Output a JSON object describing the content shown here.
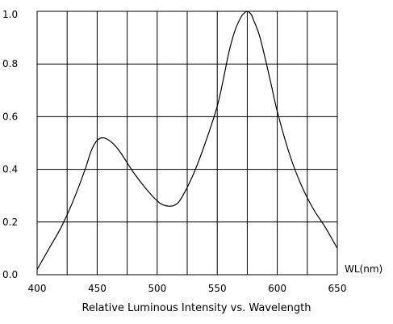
{
  "chart_data": {
    "type": "line",
    "title": "Relative Luminous Intensity vs. Wavelength",
    "xlabel": "WL(nm)",
    "ylabel": "",
    "xlim": [
      400,
      650
    ],
    "ylim": [
      0,
      1.0
    ],
    "grid": true,
    "x_ticks": [
      {
        "value": 400,
        "label": "400"
      },
      {
        "value": 450,
        "label": "450"
      },
      {
        "value": 500,
        "label": "500"
      },
      {
        "value": 550,
        "label": "550"
      },
      {
        "value": 600,
        "label": "600"
      },
      {
        "value": 650,
        "label": "650"
      }
    ],
    "x_gridlines": [
      400,
      425,
      450,
      475,
      500,
      525,
      550,
      575,
      600,
      625,
      650
    ],
    "y_ticks": [
      {
        "value": 0.0,
        "label": "0.0"
      },
      {
        "value": 0.2,
        "label": "0.2"
      },
      {
        "value": 0.4,
        "label": "0.4"
      },
      {
        "value": 0.6,
        "label": "0.6"
      },
      {
        "value": 0.8,
        "label": "0.8"
      },
      {
        "value": 1.0,
        "label": "1.0"
      }
    ],
    "series": [
      {
        "color": "#000000",
        "x": [
          400,
          410,
          420,
          430,
          440,
          445,
          450,
          455,
          460,
          465,
          470,
          480,
          490,
          500,
          505,
          510,
          515,
          520,
          530,
          540,
          550,
          555,
          560,
          565,
          570,
          573,
          575,
          578,
          580,
          585,
          590,
          595,
          600,
          610,
          620,
          630,
          640,
          650
        ],
        "y": [
          0.02,
          0.1,
          0.18,
          0.28,
          0.4,
          0.47,
          0.51,
          0.52,
          0.51,
          0.49,
          0.46,
          0.39,
          0.33,
          0.28,
          0.265,
          0.26,
          0.265,
          0.29,
          0.38,
          0.5,
          0.64,
          0.74,
          0.85,
          0.93,
          0.98,
          0.995,
          1.0,
          0.99,
          0.97,
          0.91,
          0.82,
          0.72,
          0.62,
          0.46,
          0.34,
          0.25,
          0.18,
          0.1
        ]
      }
    ]
  }
}
